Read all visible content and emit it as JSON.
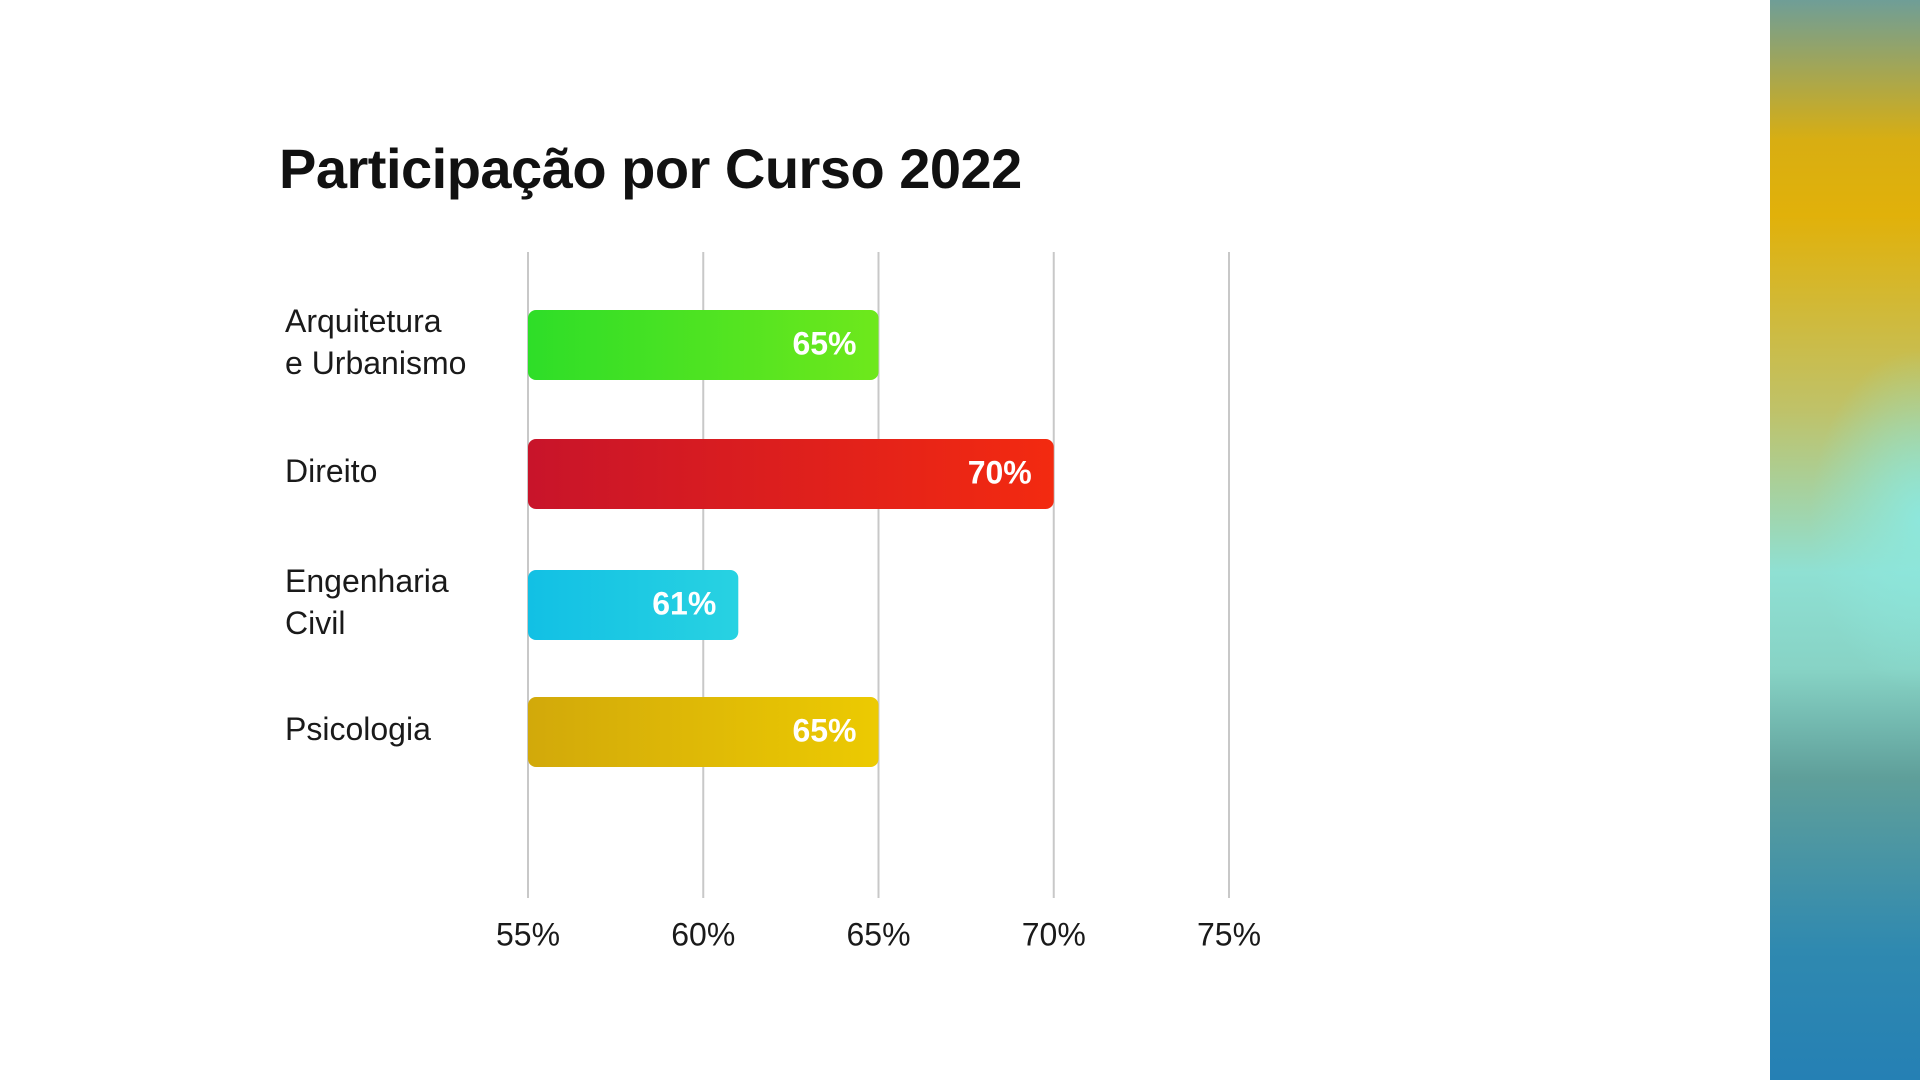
{
  "chart_data": {
    "type": "bar",
    "orientation": "horizontal",
    "title": "Participação por Curso 2022",
    "categories": [
      [
        "Arquitetura",
        "e Urbanismo"
      ],
      [
        "Direito"
      ],
      [
        "Engenharia",
        "Civil"
      ],
      [
        "Psicologia"
      ]
    ],
    "values": [
      65,
      70,
      61,
      65
    ],
    "value_labels": [
      "65%",
      "70%",
      "61%",
      "65%"
    ],
    "bar_colors": [
      [
        "#2ede28",
        "#6ee81c"
      ],
      [
        "#c8142a",
        "#f32a10"
      ],
      [
        "#12c0e4",
        "#28d2e2"
      ],
      [
        "#d2a90a",
        "#ecca02"
      ]
    ],
    "xlim": [
      55,
      75
    ],
    "xticks": [
      55,
      60,
      65,
      70,
      75
    ],
    "xtick_labels": [
      "55%",
      "60%",
      "65%",
      "70%",
      "75%"
    ],
    "grid": "vertical",
    "xlabel": "",
    "ylabel": ""
  }
}
